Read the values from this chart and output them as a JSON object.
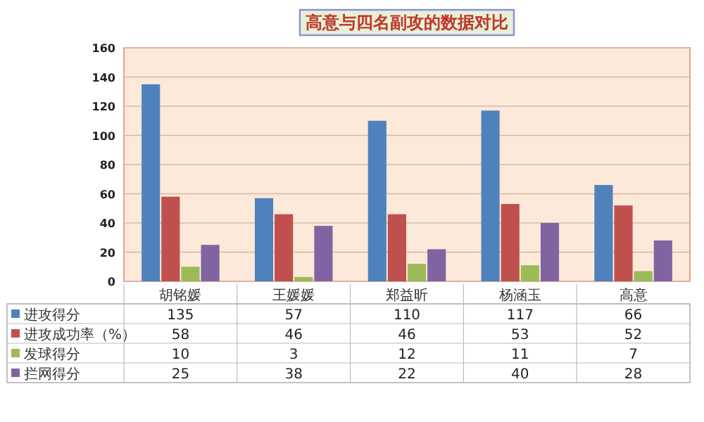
{
  "chart_data": {
    "type": "bar",
    "title": "高意与四名副攻的数据对比",
    "categories": [
      "胡铭媛",
      "王媛媛",
      "郑益昕",
      "杨涵玉",
      "高意"
    ],
    "series": [
      {
        "name": "进攻得分",
        "color": "#4f81bd",
        "values": [
          135,
          57,
          110,
          117,
          66
        ]
      },
      {
        "name": "进攻成功率（%）",
        "color": "#c0504d",
        "values": [
          58,
          46,
          46,
          53,
          52
        ]
      },
      {
        "name": "发球得分",
        "color": "#9bbb59",
        "values": [
          10,
          3,
          12,
          11,
          7
        ]
      },
      {
        "name": "拦网得分",
        "color": "#8064a2",
        "values": [
          25,
          38,
          22,
          40,
          28
        ]
      }
    ],
    "ylim": [
      0,
      160
    ],
    "yticks": [
      0,
      20,
      40,
      60,
      80,
      100,
      120,
      140,
      160
    ],
    "grid": "y",
    "legend": "bottom",
    "data_labels": true
  }
}
